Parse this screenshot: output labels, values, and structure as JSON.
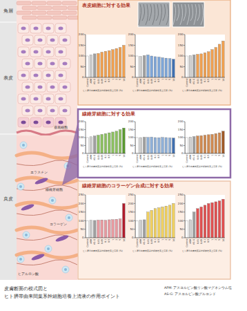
{
  "chart_data": [
    {
      "type": "bar",
      "x_label": "ヒト臍帯由来間葉系幹細胞培養上清液 (%)",
      "categories": [
        "Control",
        "APM",
        "AS-G",
        "0.01",
        "0.05",
        "0.1",
        "0.5",
        "1",
        "2",
        "5",
        "10"
      ],
      "values": [
        100,
        105,
        110,
        112,
        118,
        122,
        125,
        130,
        135,
        140,
        150
      ],
      "colors": [
        "#ffffff",
        "#d0d0d0",
        "#a0a0a0",
        "#f0a050",
        "#f0a050",
        "#f0a050",
        "#f0a050",
        "#f0a050",
        "#f0a050",
        "#f0a050",
        "#f0a050"
      ],
      "ylim": [
        0,
        200
      ],
      "yticks": [
        0,
        50,
        100,
        150,
        200
      ],
      "grid": false
    },
    {
      "type": "bar",
      "x_label": "ヒト臍帯由来間葉系幹細胞培養上清液 (%)",
      "categories": [
        "Control",
        "APM",
        "AS-G",
        "0.01",
        "0.05",
        "0.1",
        "0.5",
        "1",
        "2",
        "5",
        "10"
      ],
      "values": [
        100,
        98,
        102,
        105,
        100,
        97,
        95,
        92,
        90,
        88,
        85
      ],
      "colors": [
        "#ffffff",
        "#d0d0d0",
        "#a0a0a0",
        "#7ea6d8",
        "#7ea6d8",
        "#7ea6d8",
        "#7ea6d8",
        "#7ea6d8",
        "#7ea6d8",
        "#7ea6d8",
        "#3f6fb0"
      ],
      "ylim": [
        0,
        200
      ],
      "yticks": [
        0,
        50,
        100,
        150,
        200
      ],
      "grid": false
    },
    {
      "type": "bar",
      "x_label": "ヒト臍帯由来間葉系幹細胞培養上清液 (%)",
      "categories": [
        "Control",
        "APM",
        "AS-G",
        "0.01",
        "0.05",
        "0.1",
        "0.5",
        "1",
        "2",
        "5",
        "10"
      ],
      "values": [
        100,
        102,
        105,
        108,
        110,
        115,
        120,
        130,
        140,
        155,
        170
      ],
      "colors": [
        "#ffffff",
        "#d0d0d0",
        "#a0a0a0",
        "#f0a050",
        "#f0a050",
        "#f0a050",
        "#f0a050",
        "#f0a050",
        "#f0a050",
        "#f0a050",
        "#f0a050"
      ],
      "ylim": [
        0,
        200
      ],
      "yticks": [
        0,
        50,
        100,
        150,
        200
      ],
      "grid": false
    },
    {
      "type": "bar",
      "x_label": "ヒト臍帯由来間葉系幹細胞培養上清液 (%)",
      "categories": [
        "Control",
        "APM",
        "AS-G",
        "0.01",
        "0.05",
        "0.1",
        "0.5",
        "1",
        "2",
        "5",
        "10"
      ],
      "values": [
        100,
        105,
        110,
        115,
        120,
        125,
        130,
        135,
        140,
        150,
        160
      ],
      "colors": [
        "#ffffff",
        "#d0d0d0",
        "#a0a0a0",
        "#8cc060",
        "#8cc060",
        "#8cc060",
        "#8cc060",
        "#8cc060",
        "#8cc060",
        "#8cc060",
        "#5a9a30"
      ],
      "ylim": [
        0,
        200
      ],
      "yticks": [
        0,
        50,
        100,
        150,
        200
      ],
      "grid": false
    },
    {
      "type": "bar",
      "x_label": "ヒト臍帯由来間葉系幹細胞培養上清液 (%)",
      "categories": [
        "Control",
        "APM",
        "AS-G",
        "0.01",
        "0.05",
        "0.1",
        "0.5",
        "1",
        "2",
        "5",
        "10"
      ],
      "values": [
        100,
        100,
        102,
        101,
        103,
        100,
        99,
        101,
        100,
        98,
        97
      ],
      "colors": [
        "#ffffff",
        "#d0d0d0",
        "#a0a0a0",
        "#8fb0d8",
        "#8fb0d8",
        "#8fb0d8",
        "#8fb0d8",
        "#8fb0d8",
        "#8fb0d8",
        "#8fb0d8",
        "#3f6fb0"
      ],
      "ylim": [
        0,
        200
      ],
      "yticks": [
        0,
        50,
        100,
        150,
        200
      ],
      "grid": false
    },
    {
      "type": "bar",
      "x_label": "ヒト臍帯由来間葉系幹細胞培養上清液 (%)",
      "categories": [
        "Control",
        "APM",
        "AS-G",
        "0.01",
        "0.05",
        "0.1",
        "0.5",
        "1",
        "2",
        "5",
        "10"
      ],
      "values": [
        100,
        103,
        106,
        110,
        112,
        115,
        118,
        120,
        125,
        130,
        140
      ],
      "colors": [
        "#ffffff",
        "#d0d0d0",
        "#a0a0a0",
        "#d08a50",
        "#d08a50",
        "#d08a50",
        "#d08a50",
        "#d08a50",
        "#d08a50",
        "#d08a50",
        "#a05a28"
      ],
      "ylim": [
        0,
        200
      ],
      "yticks": [
        0,
        50,
        100,
        150,
        200
      ],
      "grid": false
    },
    {
      "type": "bar",
      "x_label": "ヒト臍帯由来間葉系幹細胞培養上清液 (%)",
      "categories": [
        "Control",
        "APM",
        "AS-G",
        "0.01",
        "0.05",
        "0.1",
        "0.5",
        "1",
        "2",
        "5",
        "10"
      ],
      "values": [
        100,
        102,
        101,
        103,
        104,
        102,
        105,
        106,
        108,
        110,
        200
      ],
      "colors": [
        "#ffffff",
        "#d0d0d0",
        "#a0a0a0",
        "#e89aa0",
        "#e89aa0",
        "#e89aa0",
        "#e89aa0",
        "#e89aa0",
        "#e89aa0",
        "#e89aa0",
        "#b01c2c"
      ],
      "ylim": [
        0,
        250
      ],
      "yticks": [
        0,
        50,
        100,
        150,
        200,
        250
      ],
      "grid": false
    },
    {
      "type": "bar",
      "x_label": "ヒト臍帯由来間葉系幹細胞培養上清液 (%)",
      "categories": [
        "Control",
        "APM",
        "AS-G",
        "0.01",
        "0.05",
        "0.1",
        "0.5",
        "1",
        "2",
        "5",
        "10"
      ],
      "values": [
        100,
        102,
        105,
        150,
        160,
        170,
        175,
        180,
        185,
        190,
        200
      ],
      "colors": [
        "#ffffff",
        "#d0d0d0",
        "#a0a0a0",
        "#f0d060",
        "#f0d060",
        "#f0d060",
        "#f0d060",
        "#f0d060",
        "#f0d060",
        "#f0d060",
        "#f0d060"
      ],
      "ylim": [
        0,
        250
      ],
      "yticks": [
        0,
        50,
        100,
        150,
        200,
        250
      ],
      "grid": false
    },
    {
      "type": "bar",
      "x_label": "ヒト臍帯由来間葉系幹細胞培養上清液 (%)",
      "categories": [
        "Control",
        "APM",
        "AS-G",
        "0.01",
        "0.05",
        "0.1",
        "0.5",
        "1",
        "2",
        "5",
        "10"
      ],
      "values": [
        100,
        105,
        150,
        170,
        180,
        190,
        200,
        205,
        210,
        215,
        225
      ],
      "colors": [
        "#ffffff",
        "#d0d0d0",
        "#a0a0a0",
        "#e05050",
        "#e05050",
        "#e05050",
        "#e05050",
        "#e05050",
        "#e05050",
        "#e05050",
        "#e05050"
      ],
      "ylim": [
        0,
        250
      ],
      "yticks": [
        0,
        50,
        100,
        150,
        200,
        250
      ],
      "grid": false
    }
  ],
  "diagram": {
    "layers": [
      "角層",
      "表皮",
      "真皮"
    ],
    "labels": [
      "基底細胞",
      "エラスチン",
      "線維芽細胞",
      "コラーゲン",
      "ヒアルロン酸"
    ],
    "panels": [
      "表皮細胞に対する効果",
      "線維芽細胞に対する効果",
      "線維芽細胞のコラーゲン合成に対する効果"
    ],
    "caption": [
      "皮膚断面の模式図と",
      "ヒト臍帯由来間葉系幹細胞培養上清液の作用ポイント"
    ],
    "notes": [
      "APM: アスコルビン酸リン酸マグネシウム塩",
      "AS-G: アスコルビン酸グルコシド"
    ]
  }
}
